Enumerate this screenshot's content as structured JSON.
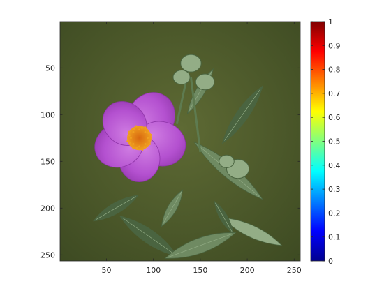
{
  "chart_data": {
    "type": "heatmap",
    "title": "",
    "xlabel": "",
    "ylabel": "",
    "xlim": [
      0.5,
      256.5
    ],
    "ylim": [
      0.5,
      256.5
    ],
    "y_reversed": true,
    "x_ticks": [
      50,
      100,
      150,
      200,
      250
    ],
    "y_ticks": [
      50,
      100,
      150,
      200,
      250
    ],
    "image": {
      "content": "photograph of a pink-purple rockrose flower with five petals, an orange-yellow center, grey-green leaves and flower buds on a blurred olive-green background",
      "colors": {
        "background": "#5e6a34",
        "background_dark": "#3d4a22",
        "petal": "#b451d0",
        "petal_light": "#cf7ce2",
        "petal_dark": "#8e34a8",
        "center": "#f0a020",
        "center_core": "#d86810",
        "leaf": "#6f8a62",
        "leaf_dark": "#4a6440",
        "leaf_light": "#93ad86",
        "stem": "#5e7b50"
      }
    },
    "colorbar": {
      "colormap": "jet",
      "range": [
        0,
        1
      ],
      "ticks": [
        0,
        0.1,
        0.2,
        0.3,
        0.4,
        0.5,
        0.6,
        0.7,
        0.8,
        0.9,
        1
      ],
      "tick_labels": [
        "0",
        "0.1",
        "0.2",
        "0.3",
        "0.4",
        "0.5",
        "0.6",
        "0.7",
        "0.8",
        "0.9",
        "1"
      ]
    }
  }
}
